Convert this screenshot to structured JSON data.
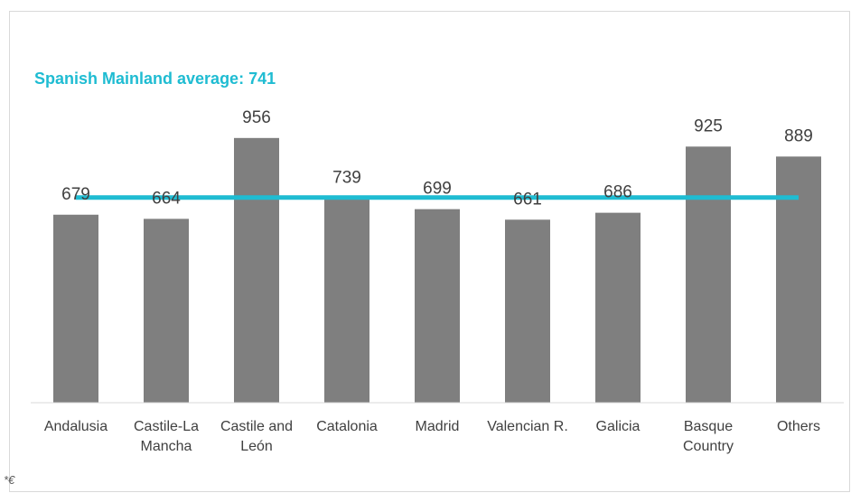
{
  "chart_data": {
    "type": "bar",
    "categories": [
      "Andalusia",
      "Castile-La Mancha",
      "Castile and León",
      "Catalonia",
      "Madrid",
      "Valencian R.",
      "Galicia",
      "Basque Country",
      "Others"
    ],
    "values": [
      679,
      664,
      956,
      739,
      699,
      661,
      686,
      925,
      889
    ],
    "color": "#7f7f7f",
    "ylim": [
      0,
      1200
    ],
    "average": 741,
    "average_label": "Spanish Mainland average: 741",
    "average_color": "#1fbcd2",
    "footnote": "*€"
  }
}
